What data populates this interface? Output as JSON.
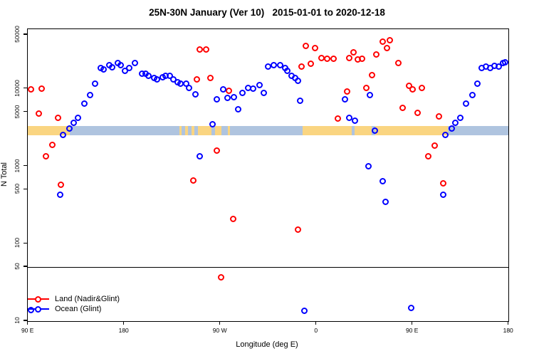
{
  "chart_data": {
    "type": "scatter",
    "title": "25N-30N January (Ver 10)   2015-01-01 to 2020-12-18",
    "xlabel": "Longitude (deg E)",
    "ylabel": "N Total",
    "x_axis": {
      "min_deg": 90,
      "max_deg": 540,
      "ticks": [
        {
          "deg": 90,
          "label": "90 E"
        },
        {
          "deg": 180,
          "label": "180"
        },
        {
          "deg": 270,
          "label": "90 W"
        },
        {
          "deg": 360,
          "label": "0"
        },
        {
          "deg": 450,
          "label": "90 E"
        },
        {
          "deg": 540,
          "label": "180"
        }
      ]
    },
    "y_axis": {
      "scale": "log",
      "min": 10,
      "max": 59000,
      "ticks": [
        10,
        50,
        100,
        500,
        1000,
        5000,
        10000,
        50000
      ]
    },
    "reference_line_y": 50,
    "surface_band": {
      "n_range": [
        2500,
        3300
      ],
      "land_color": "#fad581",
      "ocean_color": "#afc4df",
      "segments": [
        {
          "from": 90,
          "to": 129,
          "type": "land"
        },
        {
          "from": 129,
          "to": 232,
          "type": "ocean"
        },
        {
          "from": 232,
          "to": 234,
          "type": "land"
        },
        {
          "from": 234,
          "to": 237,
          "type": "ocean"
        },
        {
          "from": 237,
          "to": 240,
          "type": "land"
        },
        {
          "from": 240,
          "to": 243,
          "type": "ocean"
        },
        {
          "from": 243,
          "to": 246,
          "type": "land"
        },
        {
          "from": 246,
          "to": 249,
          "type": "ocean"
        },
        {
          "from": 249,
          "to": 262,
          "type": "land"
        },
        {
          "from": 262,
          "to": 265,
          "type": "ocean"
        },
        {
          "from": 265,
          "to": 271,
          "type": "land"
        },
        {
          "from": 271,
          "to": 277,
          "type": "ocean"
        },
        {
          "from": 277,
          "to": 279,
          "type": "land"
        },
        {
          "from": 279,
          "to": 347,
          "type": "ocean"
        },
        {
          "from": 347,
          "to": 393,
          "type": "land"
        },
        {
          "from": 393,
          "to": 396,
          "type": "ocean"
        },
        {
          "from": 396,
          "to": 412,
          "type": "land"
        },
        {
          "from": 412,
          "to": 415,
          "type": "ocean"
        },
        {
          "from": 415,
          "to": 483,
          "type": "land"
        },
        {
          "from": 483,
          "to": 540,
          "type": "ocean"
        }
      ]
    },
    "series": [
      {
        "name": "Land (Nadir&Glint)",
        "color": "#ff0000",
        "points": [
          [
            93,
            9800
          ],
          [
            103,
            10000
          ],
          [
            100,
            4850
          ],
          [
            118,
            4200
          ],
          [
            113,
            1900
          ],
          [
            107,
            1360
          ],
          [
            121,
            580
          ],
          [
            245,
            650
          ],
          [
            248,
            13400
          ],
          [
            251,
            32600
          ],
          [
            257,
            32600
          ],
          [
            261,
            13900
          ],
          [
            267,
            1610
          ],
          [
            271,
            37
          ],
          [
            278,
            9400
          ],
          [
            282,
            211
          ],
          [
            343,
            151
          ],
          [
            346,
            19600
          ],
          [
            350,
            36300
          ],
          [
            355,
            21000
          ],
          [
            359,
            34000
          ],
          [
            365,
            25300
          ],
          [
            370,
            24300
          ],
          [
            376,
            24300
          ],
          [
            380,
            4100
          ],
          [
            389,
            9200
          ],
          [
            391,
            25300
          ],
          [
            395,
            29400
          ],
          [
            399,
            23800
          ],
          [
            403,
            24300
          ],
          [
            407,
            10400
          ],
          [
            412,
            15200
          ],
          [
            416,
            27600
          ],
          [
            422,
            40400
          ],
          [
            426,
            34000
          ],
          [
            429,
            43000
          ],
          [
            437,
            21400
          ],
          [
            441,
            5750
          ],
          [
            447,
            10900
          ],
          [
            450,
            9800
          ],
          [
            455,
            4960
          ],
          [
            459,
            10200
          ],
          [
            465,
            1360
          ],
          [
            471,
            1870
          ],
          [
            475,
            4370
          ],
          [
            479,
            597
          ]
        ]
      },
      {
        "name": "Ocean (Glint)",
        "color": "#0000ff",
        "points": [
          [
            92.7,
            13.8
          ],
          [
            120,
            425
          ],
          [
            123,
            2520
          ],
          [
            129,
            3050
          ],
          [
            133,
            3610
          ],
          [
            137,
            4190
          ],
          [
            143,
            6400
          ],
          [
            148,
            8260
          ],
          [
            153,
            11600
          ],
          [
            158,
            18500
          ],
          [
            161,
            17700
          ],
          [
            166,
            20500
          ],
          [
            169,
            19200
          ],
          [
            174,
            21400
          ],
          [
            177,
            20500
          ],
          [
            181,
            17300
          ],
          [
            185,
            18500
          ],
          [
            190,
            21400
          ],
          [
            197,
            15900
          ],
          [
            200,
            15600
          ],
          [
            203,
            14900
          ],
          [
            208,
            14000
          ],
          [
            211,
            13400
          ],
          [
            216,
            14300
          ],
          [
            219,
            14900
          ],
          [
            223,
            14900
          ],
          [
            226,
            13400
          ],
          [
            230,
            12100
          ],
          [
            233,
            11600
          ],
          [
            238,
            11600
          ],
          [
            241,
            10400
          ],
          [
            247,
            8600
          ],
          [
            251,
            1360
          ],
          [
            263,
            3530
          ],
          [
            267,
            7400
          ],
          [
            273,
            9800
          ],
          [
            277,
            7580
          ],
          [
            283,
            7900
          ],
          [
            287,
            5500
          ],
          [
            291,
            8800
          ],
          [
            296,
            10200
          ],
          [
            301,
            10100
          ],
          [
            307,
            11300
          ],
          [
            311,
            8800
          ],
          [
            315,
            19400
          ],
          [
            320,
            20500
          ],
          [
            326,
            20500
          ],
          [
            331,
            18500
          ],
          [
            333,
            17300
          ],
          [
            337,
            14900
          ],
          [
            340,
            14000
          ],
          [
            343,
            12600
          ],
          [
            345,
            7100
          ],
          [
            349,
            13.5
          ],
          [
            387,
            7400
          ],
          [
            391,
            4200
          ],
          [
            396,
            3900
          ],
          [
            409,
            1010
          ],
          [
            410,
            8260
          ],
          [
            415,
            2860
          ],
          [
            422,
            649
          ],
          [
            425,
            344
          ],
          [
            449,
            14.7
          ],
          [
            479,
            425
          ],
          [
            481,
            2520
          ],
          [
            487,
            3050
          ],
          [
            490,
            3610
          ],
          [
            495,
            4190
          ],
          [
            500,
            6400
          ],
          [
            506,
            8400
          ],
          [
            511,
            11800
          ],
          [
            515,
            18500
          ],
          [
            519,
            19600
          ],
          [
            523,
            18800
          ],
          [
            527,
            20000
          ],
          [
            531,
            19600
          ],
          [
            535,
            21400
          ],
          [
            537,
            22000
          ]
        ]
      }
    ],
    "legend": {
      "position": "bottom-left",
      "entries": [
        "Land (Nadir&Glint)",
        "Ocean (Glint)"
      ]
    }
  }
}
